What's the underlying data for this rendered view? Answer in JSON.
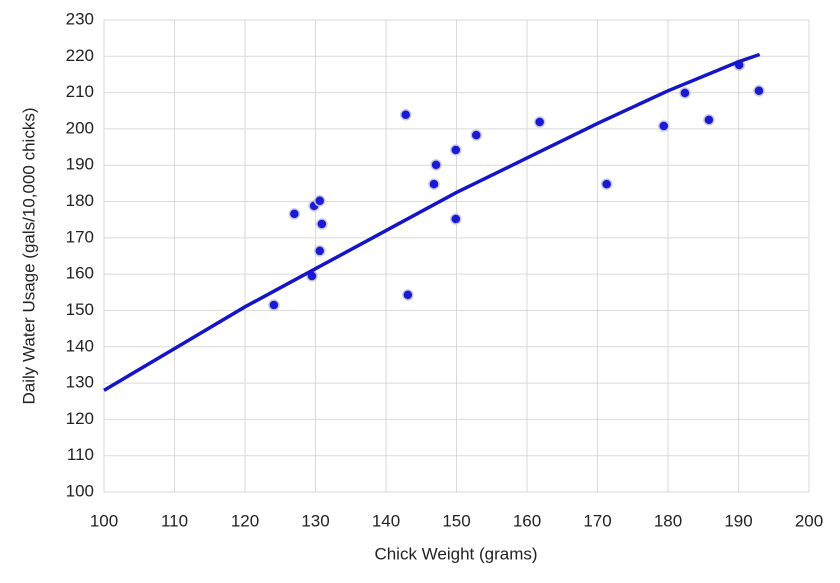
{
  "chart_data": {
    "type": "scatter",
    "x_label": "Chick Weight (grams)",
    "y_label": "Daily Water Usage (gals/10,000 chicks)",
    "xlim": [
      100,
      200
    ],
    "xticks": [
      100,
      110,
      120,
      130,
      140,
      150,
      160,
      170,
      180,
      190,
      200
    ],
    "ylim": [
      100,
      230
    ],
    "yticks": [
      100,
      110,
      120,
      130,
      140,
      150,
      160,
      170,
      180,
      190,
      200,
      210,
      220,
      230
    ],
    "grid": true,
    "series": [
      {
        "type": "scatter",
        "color": "#1a1ad6",
        "x": [
          124.1,
          127,
          129.5,
          129.8,
          130.6,
          130.6,
          130.9,
          142.8,
          143.1,
          146.8,
          147.1,
          149.9,
          149.9,
          152.8,
          161.8,
          171.3,
          179.4,
          182.4,
          185.8,
          190.1,
          192.9
        ],
        "values": [
          151.5,
          176.6,
          159.5,
          178.8,
          180.2,
          166.4,
          173.8,
          203.9,
          154.3,
          184.8,
          190.1,
          194.2,
          175.2,
          198.3,
          201.9,
          184.8,
          200.8,
          209.9,
          202.5,
          217.6,
          210.5
        ]
      },
      {
        "type": "line",
        "color": "#1414c8",
        "x": [
          100,
          110,
          120,
          130,
          140,
          150,
          160,
          170,
          180,
          190,
          193
        ],
        "values": [
          128,
          139.5,
          151,
          161.5,
          172,
          182.5,
          192,
          201.5,
          210.5,
          218.5,
          220.5
        ]
      }
    ]
  }
}
